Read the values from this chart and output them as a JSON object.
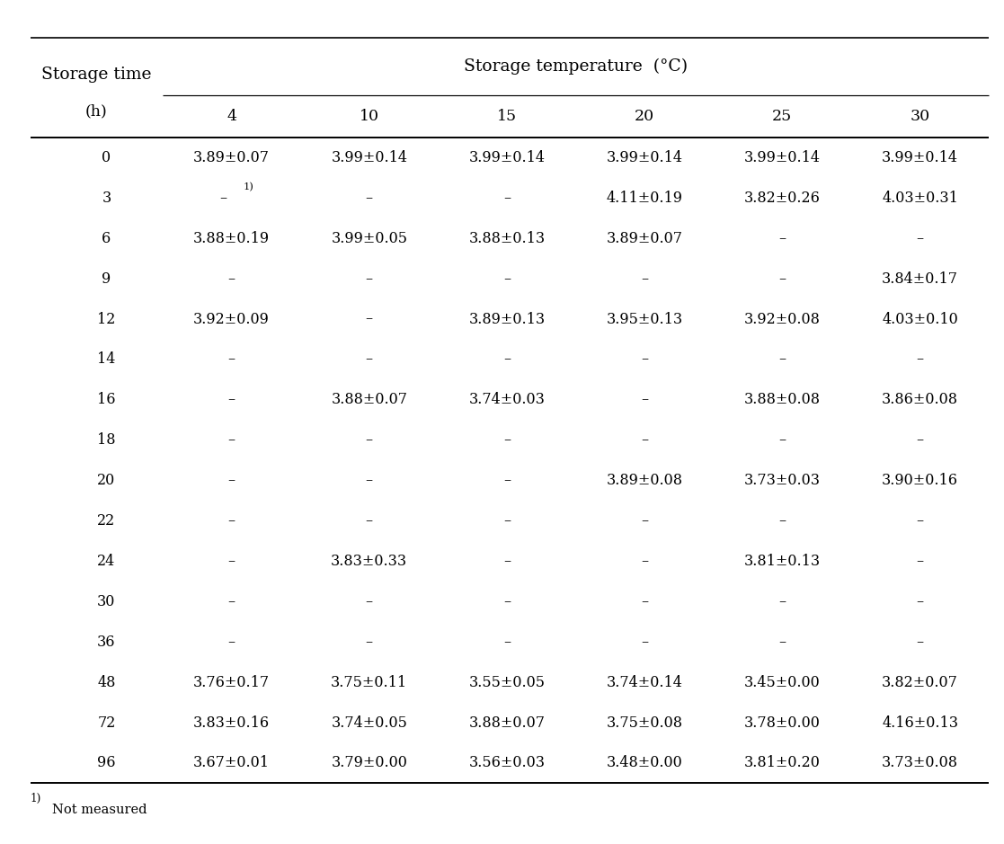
{
  "title_main": "Storage temperature  (°C)",
  "col_temps": [
    "4",
    "10",
    "15",
    "20",
    "25",
    "30"
  ],
  "rows": [
    {
      "time": "0",
      "vals": [
        "3.89±0.07",
        "3.99±0.14",
        "3.99±0.14",
        "3.99±0.14",
        "3.99±0.14",
        "3.99±0.14"
      ]
    },
    {
      "time": "3",
      "vals": [
        "–1)",
        "–",
        "–",
        "4.11±0.19",
        "3.82±0.26",
        "4.03±0.31"
      ]
    },
    {
      "time": "6",
      "vals": [
        "3.88±0.19",
        "3.99±0.05",
        "3.88±0.13",
        "3.89±0.07",
        "–",
        "–"
      ]
    },
    {
      "time": "9",
      "vals": [
        "–",
        "–",
        "–",
        "–",
        "–",
        "3.84±0.17"
      ]
    },
    {
      "time": "12",
      "vals": [
        "3.92±0.09",
        "–",
        "3.89±0.13",
        "3.95±0.13",
        "3.92±0.08",
        "4.03±0.10"
      ]
    },
    {
      "time": "14",
      "vals": [
        "–",
        "–",
        "–",
        "–",
        "–",
        "–"
      ]
    },
    {
      "time": "16",
      "vals": [
        "–",
        "3.88±0.07",
        "3.74±0.03",
        "–",
        "3.88±0.08",
        "3.86±0.08"
      ]
    },
    {
      "time": "18",
      "vals": [
        "–",
        "–",
        "–",
        "–",
        "–",
        "–"
      ]
    },
    {
      "time": "20",
      "vals": [
        "–",
        "–",
        "–",
        "3.89±0.08",
        "3.73±0.03",
        "3.90±0.16"
      ]
    },
    {
      "time": "22",
      "vals": [
        "–",
        "–",
        "–",
        "–",
        "–",
        "–"
      ]
    },
    {
      "time": "24",
      "vals": [
        "–",
        "3.83±0.33",
        "–",
        "–",
        "3.81±0.13",
        "–"
      ]
    },
    {
      "time": "30",
      "vals": [
        "–",
        "–",
        "–",
        "–",
        "–",
        "–"
      ]
    },
    {
      "time": "36",
      "vals": [
        "–",
        "–",
        "–",
        "–",
        "–",
        "–"
      ]
    },
    {
      "time": "48",
      "vals": [
        "3.76±0.17",
        "3.75±0.11",
        "3.55±0.05",
        "3.74±0.14",
        "3.45±0.00",
        "3.82±0.07"
      ]
    },
    {
      "time": "72",
      "vals": [
        "3.83±0.16",
        "3.74±0.05",
        "3.88±0.07",
        "3.75±0.08",
        "3.78±0.00",
        "4.16±0.13"
      ]
    },
    {
      "time": "96",
      "vals": [
        "3.67±0.01",
        "3.79±0.00",
        "3.56±0.03",
        "3.48±0.00",
        "3.81±0.20",
        "3.73±0.08"
      ]
    }
  ],
  "footnote_super": "1)",
  "footnote_text": "Not measured",
  "bg_color": "#ffffff",
  "text_color": "#000000",
  "line_color": "#000000",
  "fs_main_header": 13.5,
  "fs_sub_header": 12.5,
  "fs_data": 11.5,
  "fs_footnote": 10.5
}
